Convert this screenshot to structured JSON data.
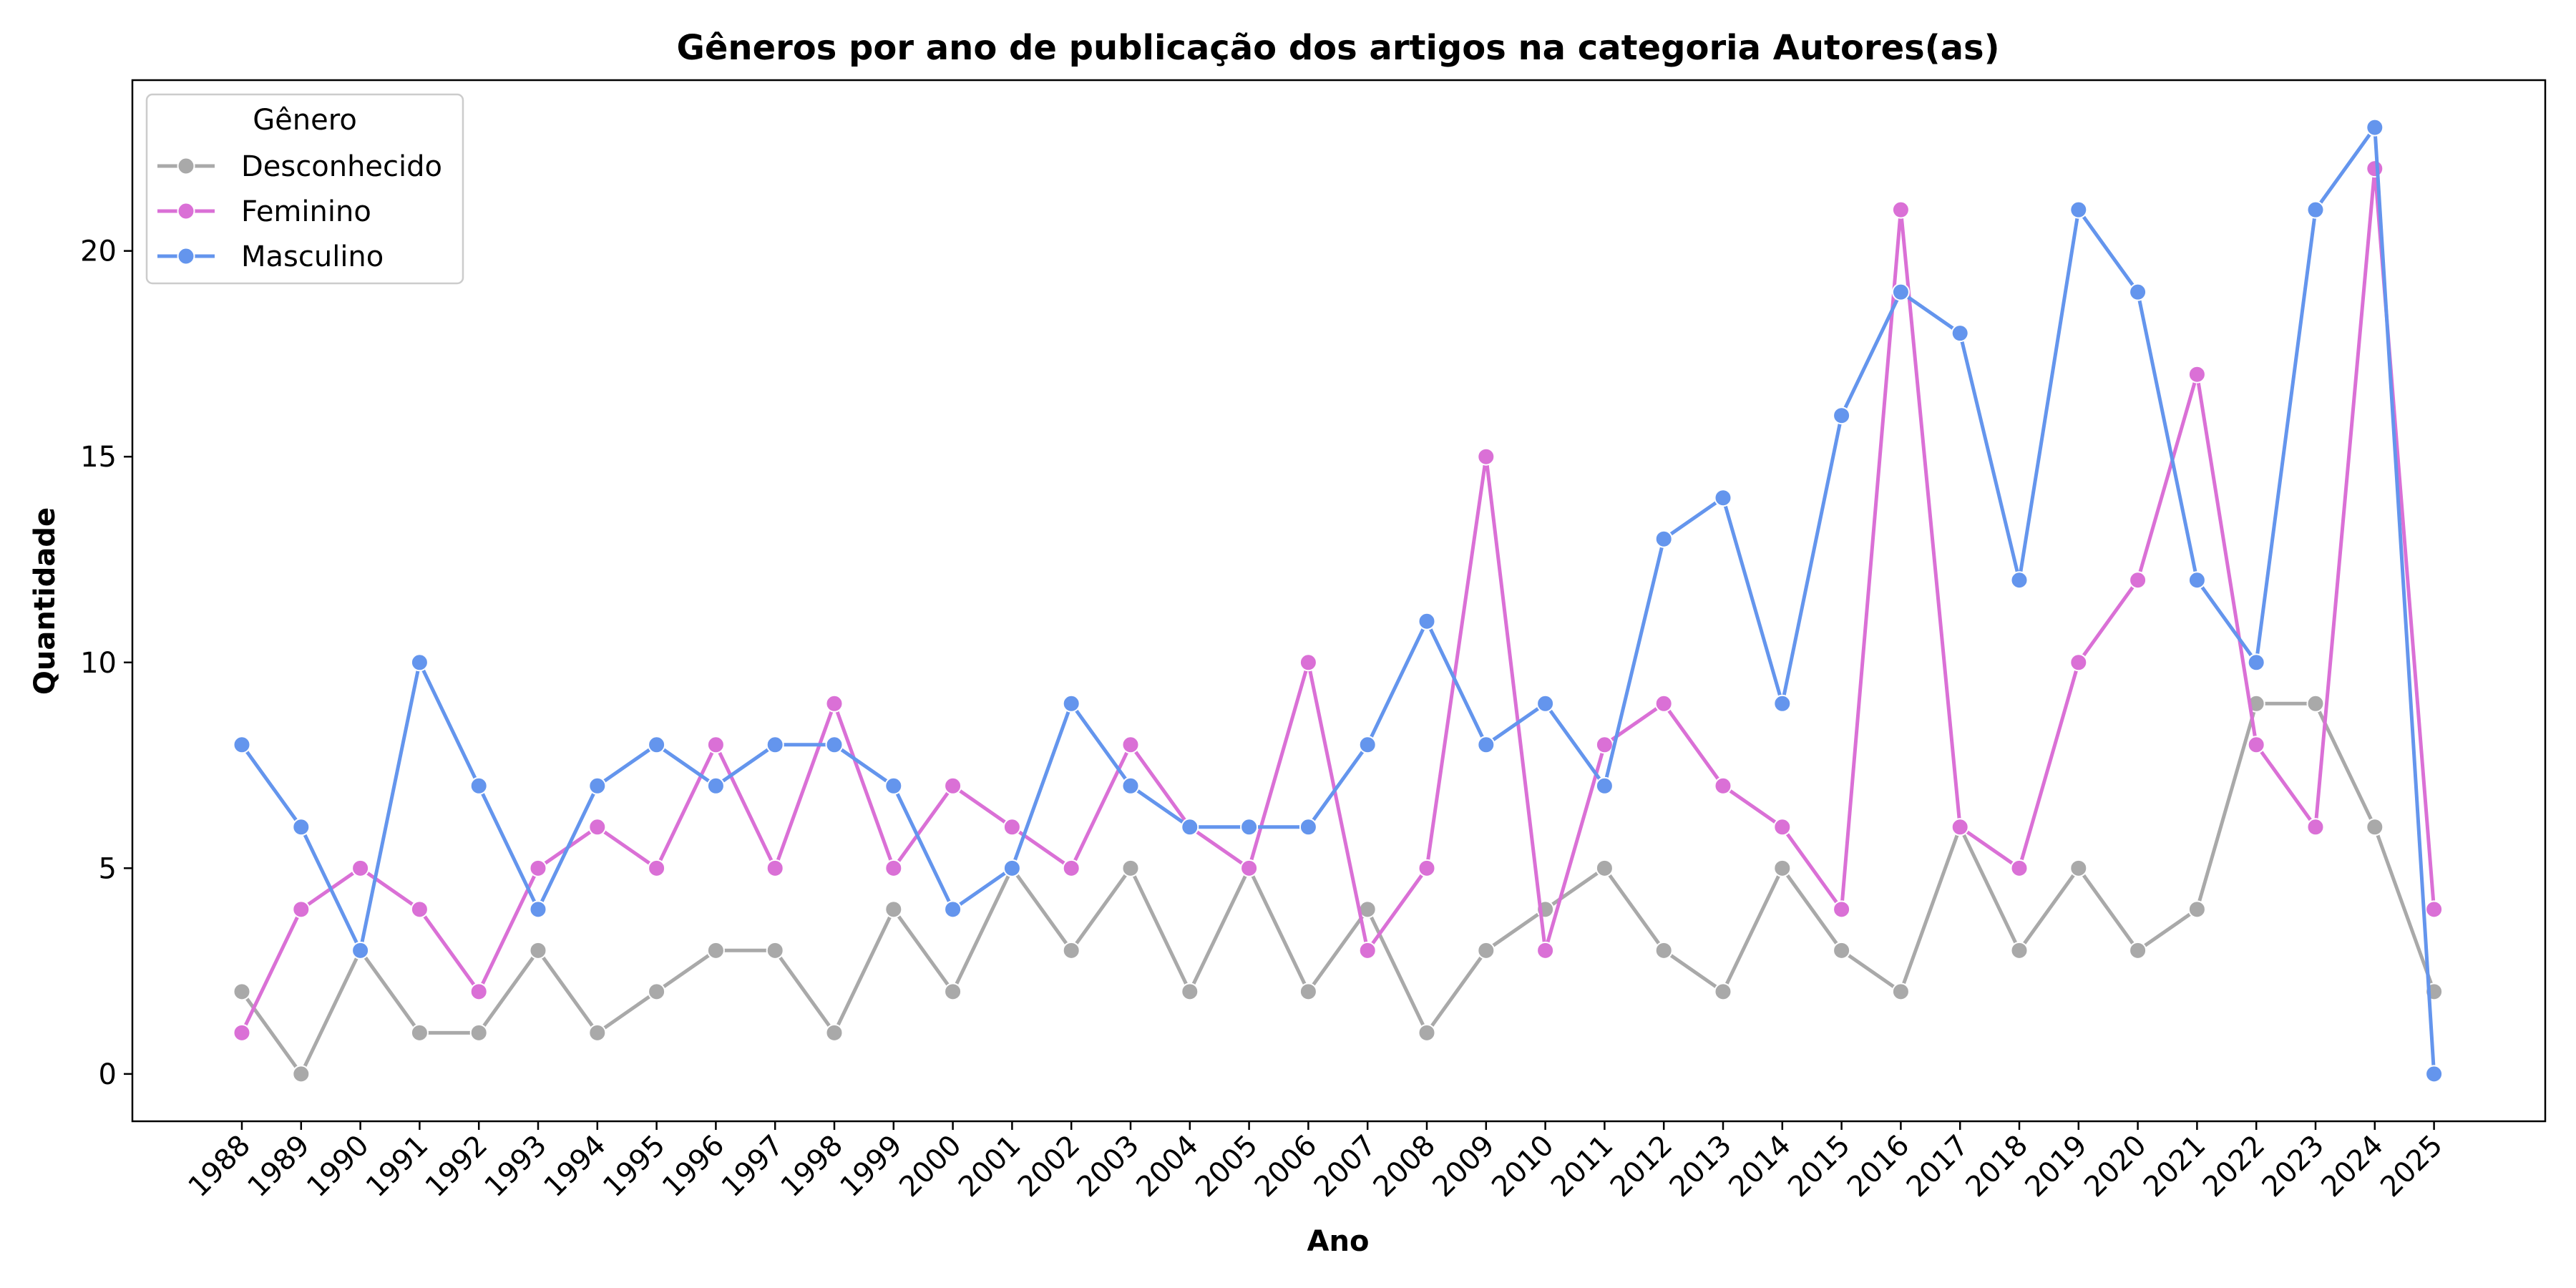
{
  "chart_data": {
    "type": "line",
    "title": "Gêneros por ano de publicação dos artigos na categoria Autores(as)",
    "xlabel": "Ano",
    "ylabel": "Quantidade",
    "x": [
      1988,
      1989,
      1990,
      1991,
      1992,
      1993,
      1994,
      1995,
      1996,
      1997,
      1998,
      1999,
      2000,
      2001,
      2002,
      2003,
      2004,
      2005,
      2006,
      2007,
      2008,
      2009,
      2010,
      2011,
      2012,
      2013,
      2014,
      2015,
      2016,
      2017,
      2018,
      2019,
      2020,
      2021,
      2022,
      2023,
      2024,
      2025
    ],
    "ylim": [
      -1.15,
      24.15
    ],
    "yticks": [
      0,
      5,
      10,
      15,
      20
    ],
    "grid": false,
    "legend": {
      "title": "Gênero",
      "position": "top-left"
    },
    "series": [
      {
        "name": "Desconhecido",
        "color": "#a9a9a9",
        "values": [
          2,
          0,
          3,
          1,
          1,
          3,
          1,
          2,
          3,
          3,
          1,
          4,
          2,
          5,
          3,
          5,
          2,
          5,
          2,
          4,
          1,
          3,
          4,
          5,
          3,
          2,
          5,
          3,
          2,
          6,
          3,
          5,
          3,
          4,
          9,
          9,
          6,
          2
        ]
      },
      {
        "name": "Feminino",
        "color": "#da70d6",
        "values": [
          1,
          4,
          5,
          4,
          2,
          5,
          6,
          5,
          8,
          5,
          9,
          5,
          7,
          6,
          5,
          8,
          6,
          5,
          10,
          3,
          5,
          15,
          3,
          8,
          9,
          7,
          6,
          4,
          21,
          6,
          5,
          10,
          12,
          17,
          8,
          6,
          22,
          4
        ]
      },
      {
        "name": "Masculino",
        "color": "#6495ed",
        "values": [
          8,
          6,
          3,
          10,
          7,
          4,
          7,
          8,
          7,
          8,
          8,
          7,
          4,
          5,
          9,
          7,
          6,
          6,
          6,
          8,
          11,
          8,
          9,
          7,
          13,
          14,
          9,
          16,
          19,
          18,
          12,
          21,
          19,
          12,
          10,
          21,
          23,
          0
        ]
      }
    ]
  }
}
